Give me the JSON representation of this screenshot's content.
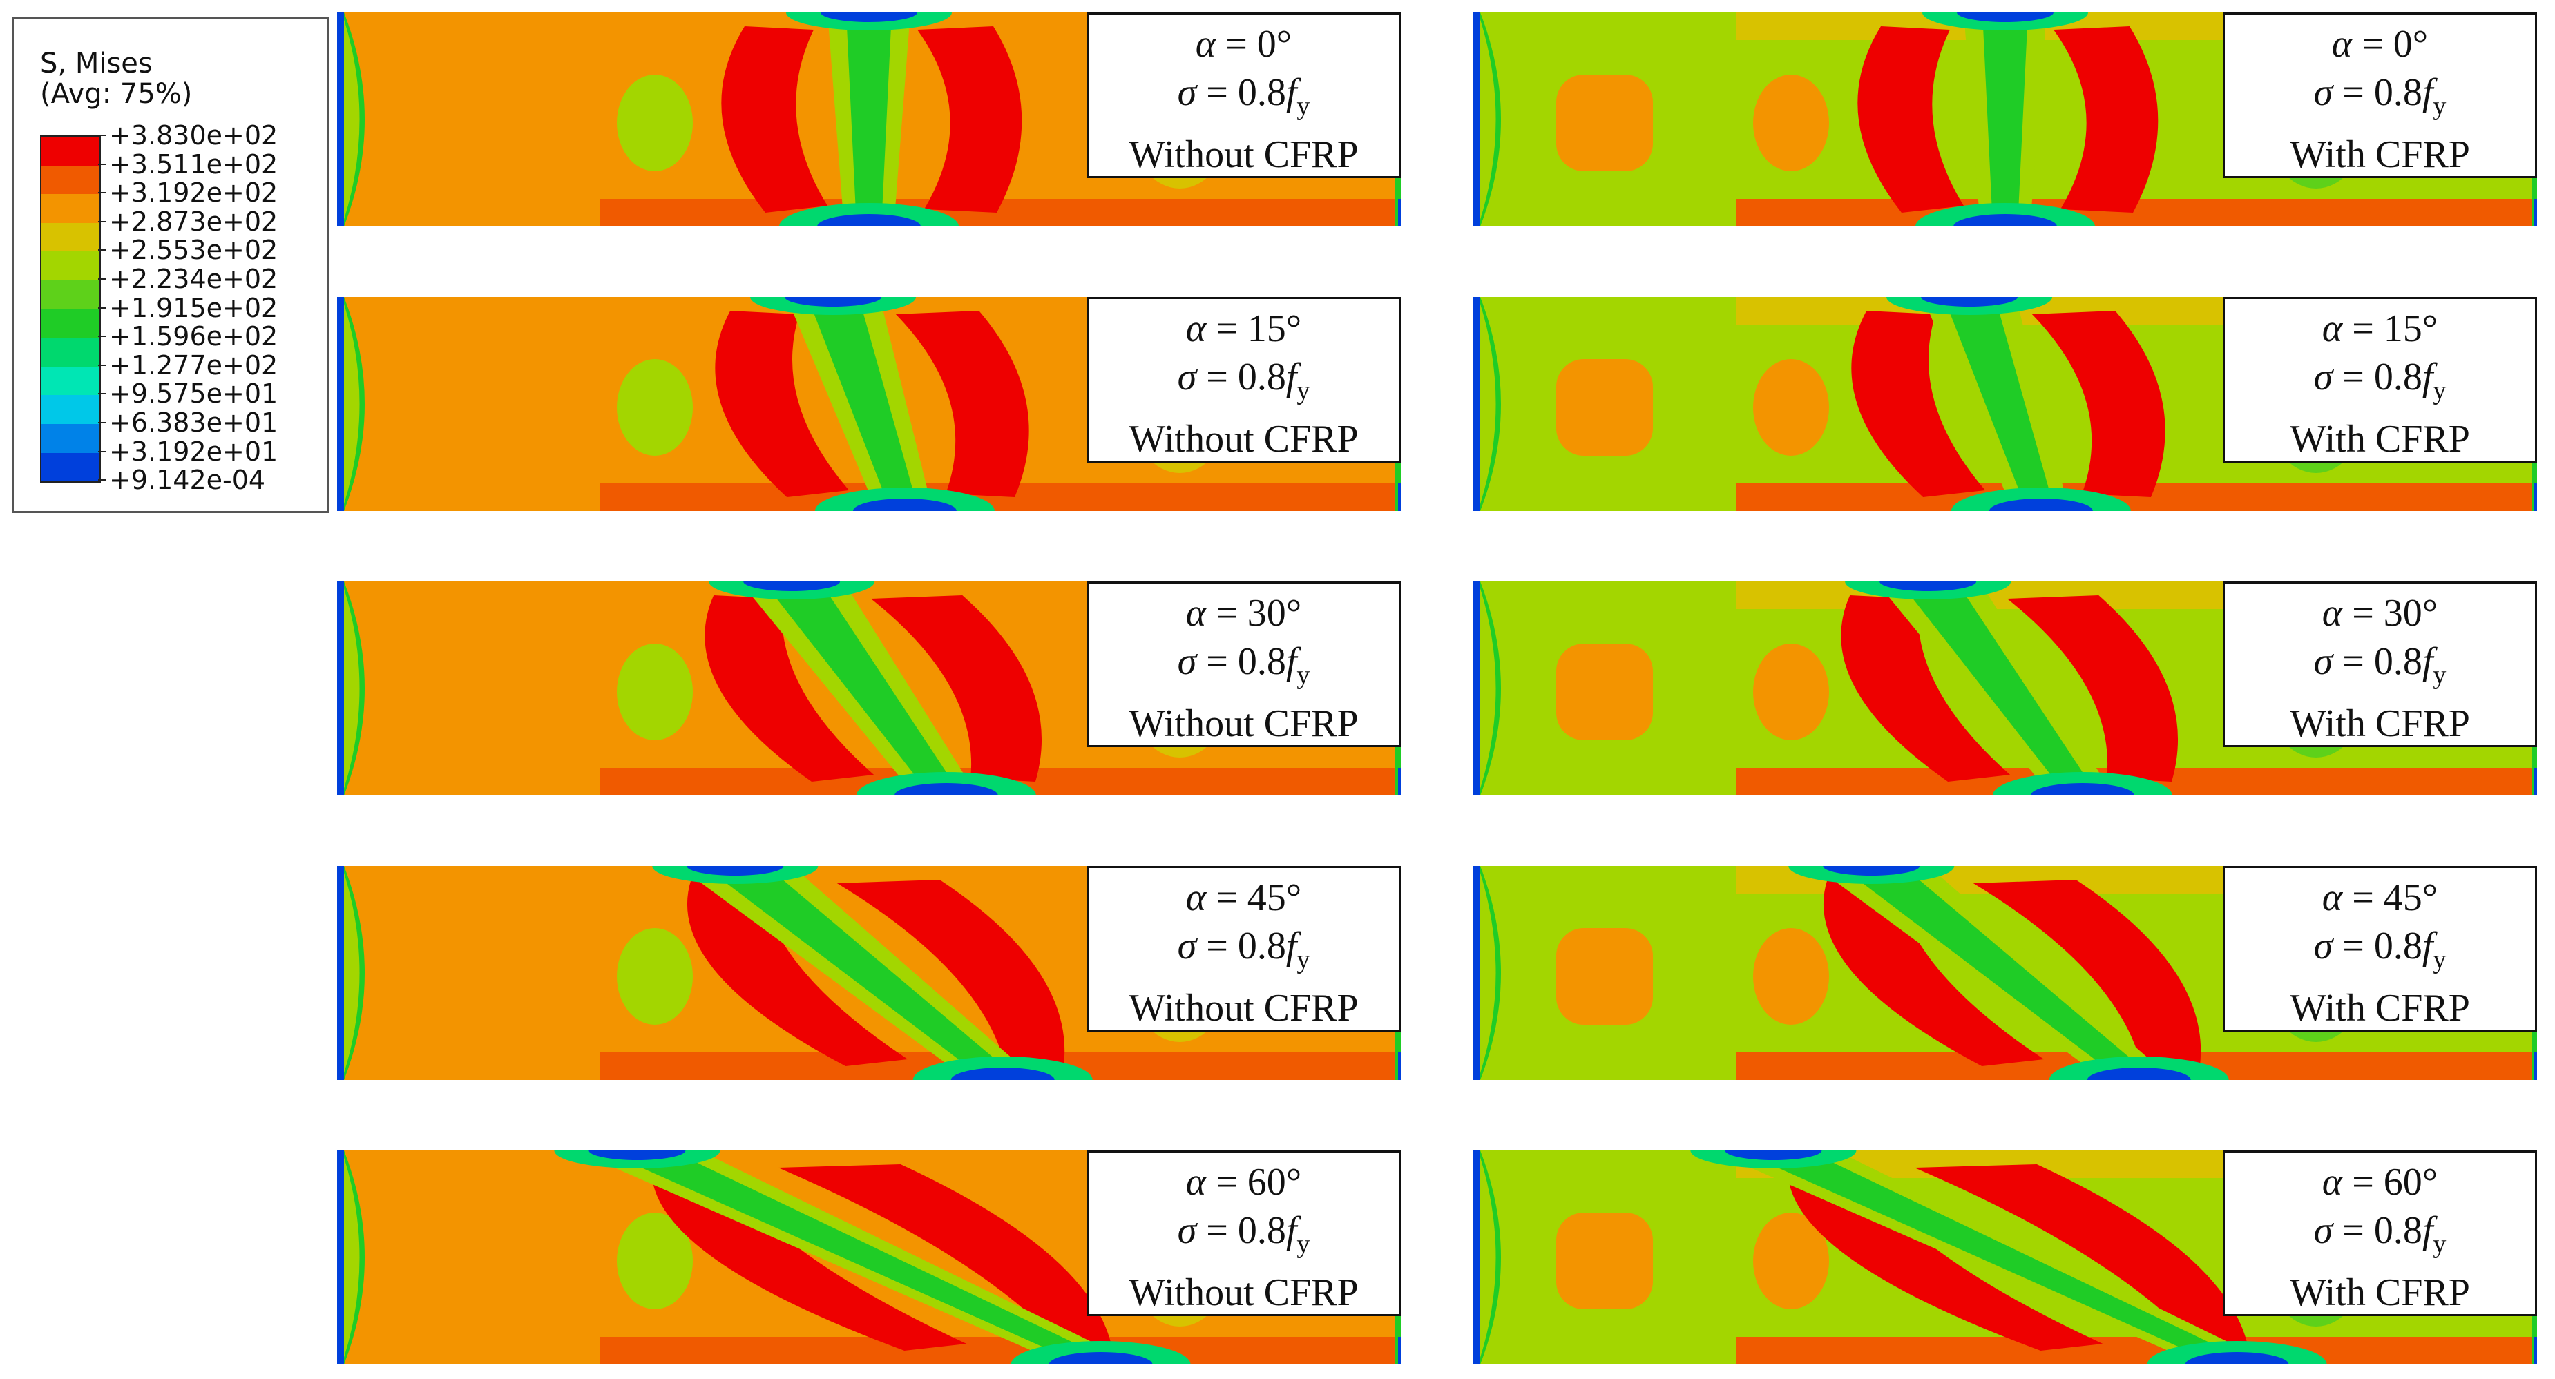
{
  "legend": {
    "title": "S, Mises",
    "subtitle": "(Avg: 75%)",
    "values": [
      "+3.830e+02",
      "+3.511e+02",
      "+3.192e+02",
      "+2.873e+02",
      "+2.553e+02",
      "+2.234e+02",
      "+1.915e+02",
      "+1.596e+02",
      "+1.277e+02",
      "+9.575e+01",
      "+6.383e+01",
      "+3.192e+01",
      "+9.142e-04"
    ],
    "colors": [
      "#ee0000",
      "#f05a00",
      "#f39400",
      "#d8c200",
      "#a3d600",
      "#5ed11a",
      "#1fcc26",
      "#00d86e",
      "#00e6b4",
      "#00c8e8",
      "#0082e8",
      "#0040dc",
      "#0000d2"
    ]
  },
  "panels": [
    {
      "alpha_text": "0°",
      "sigma_coef": "0.8",
      "sigma_symbol": "f",
      "sigma_sub": "y",
      "cfrp_text": "Without CFRP",
      "angle_deg": 0,
      "cfrp": false
    },
    {
      "alpha_text": "0°",
      "sigma_coef": "0.8",
      "sigma_symbol": "f",
      "sigma_sub": "y",
      "cfrp_text": "With CFRP",
      "angle_deg": 0,
      "cfrp": true
    },
    {
      "alpha_text": "15°",
      "sigma_coef": "0.8",
      "sigma_symbol": "f",
      "sigma_sub": "y",
      "cfrp_text": "Without CFRP",
      "angle_deg": 15,
      "cfrp": false
    },
    {
      "alpha_text": "15°",
      "sigma_coef": "0.8",
      "sigma_symbol": "f",
      "sigma_sub": "y",
      "cfrp_text": "With CFRP",
      "angle_deg": 15,
      "cfrp": true
    },
    {
      "alpha_text": "30°",
      "sigma_coef": "0.8",
      "sigma_symbol": "f",
      "sigma_sub": "y",
      "cfrp_text": "Without CFRP",
      "angle_deg": 30,
      "cfrp": false
    },
    {
      "alpha_text": "30°",
      "sigma_coef": "0.8",
      "sigma_symbol": "f",
      "sigma_sub": "y",
      "cfrp_text": "With CFRP",
      "angle_deg": 30,
      "cfrp": true
    },
    {
      "alpha_text": "45°",
      "sigma_coef": "0.8",
      "sigma_symbol": "f",
      "sigma_sub": "y",
      "cfrp_text": "Without CFRP",
      "angle_deg": 45,
      "cfrp": false
    },
    {
      "alpha_text": "45°",
      "sigma_coef": "0.8",
      "sigma_symbol": "f",
      "sigma_sub": "y",
      "cfrp_text": "With CFRP",
      "angle_deg": 45,
      "cfrp": true
    },
    {
      "alpha_text": "60°",
      "sigma_coef": "0.8",
      "sigma_symbol": "f",
      "sigma_sub": "y",
      "cfrp_text": "Without CFRP",
      "angle_deg": 60,
      "cfrp": false
    },
    {
      "alpha_text": "60°",
      "sigma_coef": "0.8",
      "sigma_symbol": "f",
      "sigma_sub": "y",
      "cfrp_text": "With CFRP",
      "angle_deg": 60,
      "cfrp": true
    }
  ]
}
